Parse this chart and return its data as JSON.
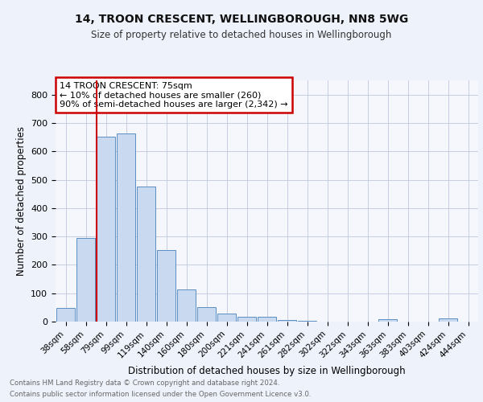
{
  "title1": "14, TROON CRESCENT, WELLINGBOROUGH, NN8 5WG",
  "title2": "Size of property relative to detached houses in Wellingborough",
  "xlabel": "Distribution of detached houses by size in Wellingborough",
  "ylabel": "Number of detached properties",
  "categories": [
    "38sqm",
    "58sqm",
    "79sqm",
    "99sqm",
    "119sqm",
    "140sqm",
    "160sqm",
    "180sqm",
    "200sqm",
    "221sqm",
    "241sqm",
    "261sqm",
    "282sqm",
    "302sqm",
    "322sqm",
    "343sqm",
    "363sqm",
    "383sqm",
    "403sqm",
    "424sqm",
    "444sqm"
  ],
  "values": [
    47,
    295,
    651,
    663,
    477,
    252,
    113,
    50,
    28,
    18,
    17,
    5,
    2,
    0,
    1,
    0,
    8,
    0,
    0,
    10,
    0
  ],
  "bar_color": "#c9d9f0",
  "bar_edge_color": "#5a8fc2",
  "vline_color": "#cc0000",
  "annotation_text": "14 TROON CRESCENT: 75sqm\n← 10% of detached houses are smaller (260)\n90% of semi-detached houses are larger (2,342) →",
  "annotation_box_color": "#ffffff",
  "annotation_box_edge": "#cc0000",
  "ylim": [
    0,
    850
  ],
  "yticks": [
    0,
    100,
    200,
    300,
    400,
    500,
    600,
    700,
    800
  ],
  "footer1": "Contains HM Land Registry data © Crown copyright and database right 2024.",
  "footer2": "Contains public sector information licensed under the Open Government Licence v3.0.",
  "bg_color": "#eef2fb",
  "plot_bg_color": "#f5f7fd"
}
